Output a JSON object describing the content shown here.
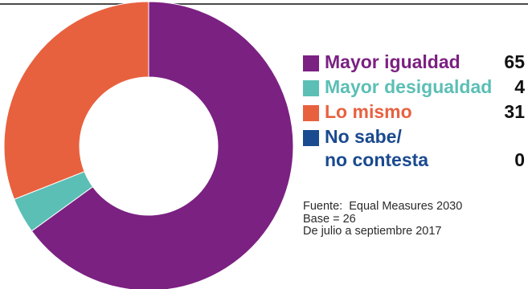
{
  "chart_data": {
    "type": "pie",
    "style": "donut",
    "categories": [
      "Mayor igualdad",
      "Mayor desigualdad",
      "Lo mismo",
      "No sabe/\nno contesta"
    ],
    "values": [
      65,
      4,
      31,
      0
    ],
    "colors": [
      "#7b2182",
      "#5bbfb5",
      "#e8613f",
      "#1a4a8f"
    ],
    "legend_placement": "right"
  },
  "legend": [
    {
      "label": "Mayor igualdad",
      "value": "65",
      "color": "#7b2182"
    },
    {
      "label": "Mayor desigualdad",
      "value": "4",
      "color": "#5bbfb5"
    },
    {
      "label": "Lo mismo",
      "value": "31",
      "color": "#e8613f"
    },
    {
      "label": "No sabe/\nno contesta",
      "value": "0",
      "color": "#1a4a8f"
    }
  ],
  "notes": {
    "source": "Fuente:  Equal Measures 2030",
    "base": "Base = 26",
    "period": "De julio a septiembre 2017"
  }
}
